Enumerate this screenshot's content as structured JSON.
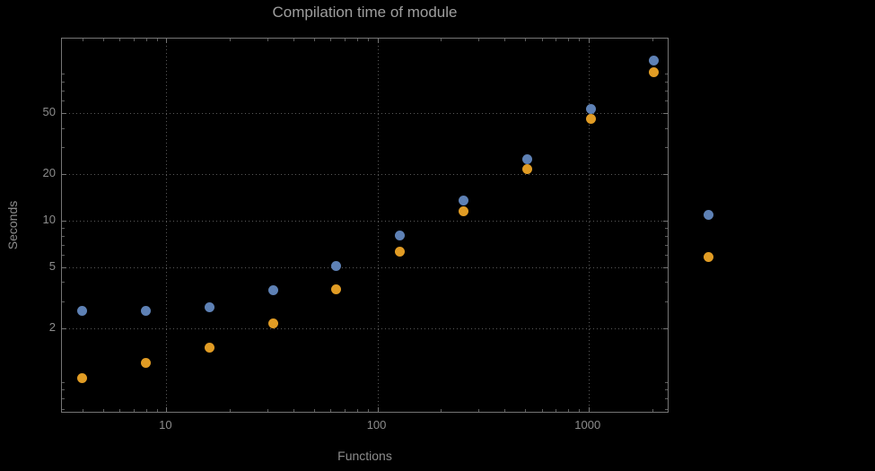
{
  "chart_data": {
    "type": "scatter",
    "title": "Compilation time of module",
    "xlabel": "Functions",
    "ylabel": "Seconds",
    "x_scale": "log",
    "y_scale": "log",
    "grid": true,
    "xlim": [
      3.2,
      2420
    ],
    "ylim": [
      0.56,
      152
    ],
    "x_ticks": [
      {
        "value": 10,
        "label": "10"
      },
      {
        "value": 100,
        "label": "100"
      },
      {
        "value": 1000,
        "label": "1000"
      }
    ],
    "y_ticks": [
      {
        "value": 2,
        "label": "2"
      },
      {
        "value": 5,
        "label": "5"
      },
      {
        "value": 10,
        "label": "10"
      },
      {
        "value": 20,
        "label": "20"
      },
      {
        "value": 50,
        "label": "50"
      }
    ],
    "x": [
      4,
      8,
      16,
      32,
      64,
      128,
      256,
      512,
      1024,
      2048
    ],
    "series": [
      {
        "name": "blue-series",
        "color": "#5e81b5",
        "values": [
          2.6,
          2.6,
          2.75,
          3.55,
          5.1,
          8.0,
          13.5,
          25,
          53,
          110
        ]
      },
      {
        "name": "orange-series",
        "color": "#e19c24",
        "values": [
          0.95,
          1.2,
          1.5,
          2.15,
          3.6,
          6.3,
          11.5,
          21.5,
          46,
          92
        ]
      }
    ],
    "legend": {
      "position": "right-outside",
      "markers": [
        {
          "series": "blue-series",
          "color": "#5e81b5"
        },
        {
          "series": "orange-series",
          "color": "#e19c24"
        }
      ]
    }
  },
  "colors": {
    "background": "#000000",
    "frame": "#757575",
    "grid": "#5a5a5a",
    "title": "#9e9e9e",
    "labels": "#8c8c8c"
  }
}
